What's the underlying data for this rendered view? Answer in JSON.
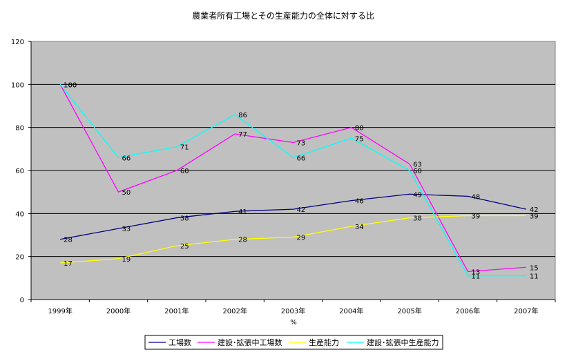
{
  "chart_data": {
    "type": "line",
    "title": "農業者所有工場とその生産能力の全体に対する比",
    "xlabel": "%",
    "ylabel": "",
    "categories": [
      "1999年",
      "2000年",
      "2001年",
      "2002年",
      "2003年",
      "2004年",
      "2005年",
      "2006年",
      "2007年"
    ],
    "ylim": [
      0,
      120
    ],
    "yticks": [
      0,
      20,
      40,
      60,
      80,
      100,
      120
    ],
    "grid": true,
    "legend_position": "bottom",
    "plot_background": "#c0c0c0",
    "series": [
      {
        "name": "工場数",
        "color": "#000080",
        "values": [
          28,
          33,
          38,
          41,
          42,
          46,
          49,
          48,
          42
        ]
      },
      {
        "name": "建設･拡張中工場数",
        "color": "#ff00ff",
        "values": [
          100,
          50,
          60,
          77,
          73,
          80,
          63,
          13,
          15
        ]
      },
      {
        "name": "生産能力",
        "color": "#ffff00",
        "values": [
          17,
          19,
          25,
          28,
          29,
          34,
          38,
          39,
          39
        ]
      },
      {
        "name": "建設･拡張中生産能力",
        "color": "#00ffff",
        "values": [
          100,
          66,
          71,
          86,
          66,
          75,
          60,
          11,
          11
        ]
      }
    ]
  }
}
